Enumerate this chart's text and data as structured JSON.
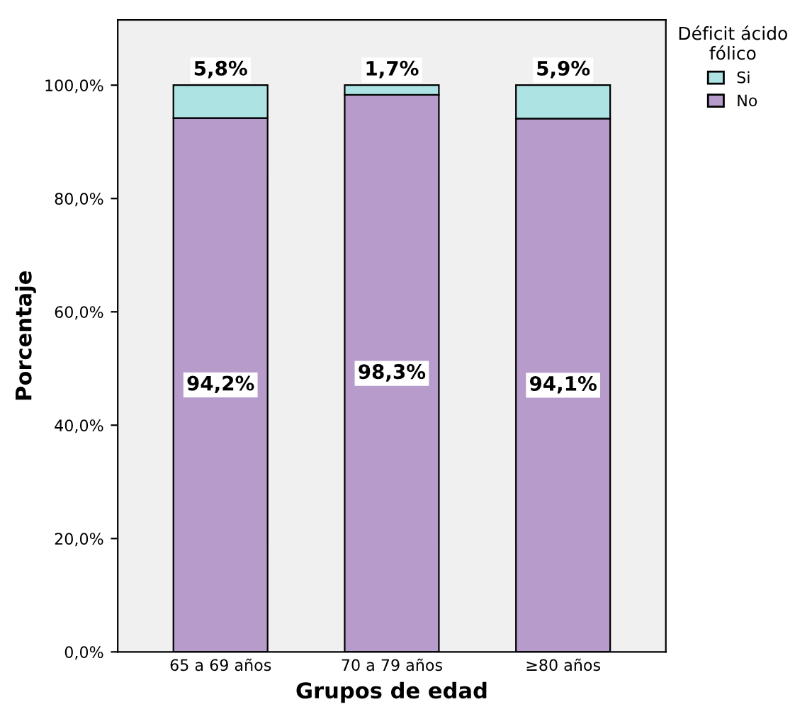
{
  "chart_data": {
    "type": "bar",
    "stacked": true,
    "xlabel": "Grupos de edad",
    "ylabel": "Porcentaje",
    "legend_title": "Déficit ácido\nfólico",
    "legend": "top right",
    "categories": [
      "65 a 69 años",
      "70 a 79 años",
      "≥80 años"
    ],
    "series": [
      {
        "name": "No",
        "color": "#b79ccb",
        "values": [
          94.2,
          98.3,
          94.1
        ],
        "value_labels": [
          "94,2%",
          "98,3%",
          "94,1%"
        ]
      },
      {
        "name": "Si",
        "color": "#aee3e3",
        "values": [
          5.8,
          1.7,
          5.9
        ],
        "value_labels": [
          "5,8%",
          "1,7%",
          "5,9%"
        ]
      }
    ],
    "ylim": [
      0,
      111.5
    ],
    "yticks": [
      {
        "value": 0,
        "label": "0,0%"
      },
      {
        "value": 20,
        "label": "20,0%"
      },
      {
        "value": 40,
        "label": "40,0%"
      },
      {
        "value": 60,
        "label": "60,0%"
      },
      {
        "value": 80,
        "label": "80,0%"
      },
      {
        "value": 100,
        "label": "100,0%"
      }
    ],
    "grid": false
  }
}
